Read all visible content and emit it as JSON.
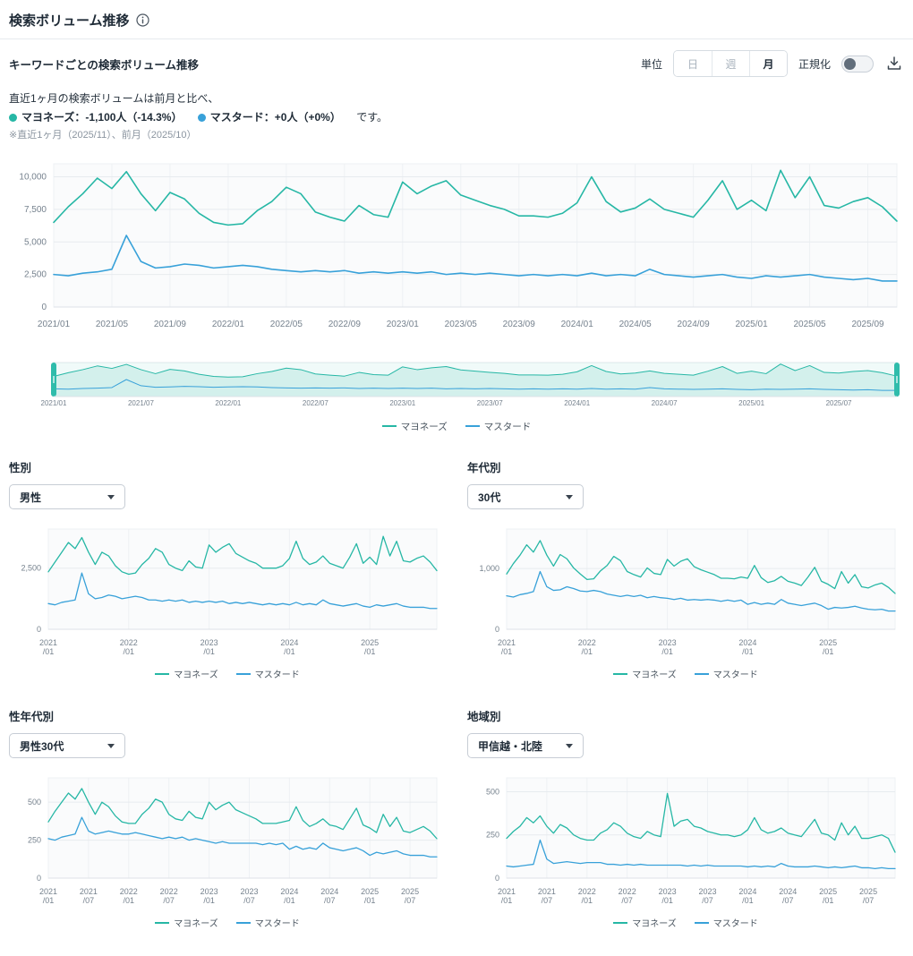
{
  "page": {
    "title": "検索ボリューム推移"
  },
  "icons": {
    "info": "info-circle",
    "download": "download-tray",
    "caret": "caret-down"
  },
  "colors": {
    "mayonnaise": "#26b7a5",
    "mustard": "#38a1d9",
    "grid": "#e7ebef",
    "axis_text": "#76828e",
    "brush_fill": "rgba(38,183,165,0.14)"
  },
  "toolbar": {
    "section_title": "キーワードごとの検索ボリューム推移",
    "unit_label": "単位",
    "unit_options": [
      {
        "label": "日",
        "selected": false
      },
      {
        "label": "週",
        "selected": false
      },
      {
        "label": "月",
        "selected": true
      }
    ],
    "normalize_label": "正規化",
    "normalize_on": false
  },
  "summary": {
    "line1": "直近1ヶ月の検索ボリュームは前月と比べ、",
    "items": [
      {
        "text": "マヨネーズ：-1,100人（-14.3%）",
        "color": "#26b7a5"
      },
      {
        "text": "マスタード：+0人（+0%）",
        "color": "#38a1d9"
      }
    ],
    "suffix": "です。",
    "note": "※直近1ヶ月（2025/11）、前月（2025/10）"
  },
  "legend": {
    "series": [
      {
        "label": "マヨネーズ",
        "color": "#26b7a5"
      },
      {
        "label": "マスタード",
        "color": "#38a1d9"
      }
    ]
  },
  "sections": [
    {
      "title": "性別",
      "dropdown": "男性"
    },
    {
      "title": "年代別",
      "dropdown": "30代"
    },
    {
      "title": "性年代別",
      "dropdown": "男性30代"
    },
    {
      "title": "地域別",
      "dropdown": "甲信越・北陸"
    }
  ],
  "chart_data": [
    {
      "id": "main",
      "type": "line",
      "title": "キーワードごとの検索ボリューム推移（月次）",
      "x_start": "2021/01",
      "x_end": "2025/11",
      "x_ticks": [
        "2021/01",
        "2021/05",
        "2021/09",
        "2022/01",
        "2022/05",
        "2022/09",
        "2023/01",
        "2023/05",
        "2023/09",
        "2024/01",
        "2024/05",
        "2024/09",
        "2025/01",
        "2025/05",
        "2025/09"
      ],
      "x_tick_step": 4,
      "y_ticks": [
        0,
        2500,
        5000,
        7500,
        10000
      ],
      "ylim": [
        0,
        11000
      ],
      "grid": true,
      "series": [
        {
          "name": "マヨネーズ",
          "color": "#26b7a5",
          "values": [
            6500,
            7700,
            8700,
            9900,
            9100,
            10400,
            8700,
            7400,
            8800,
            8300,
            7200,
            6500,
            6300,
            6400,
            7400,
            8100,
            9200,
            8700,
            7300,
            6900,
            6600,
            7800,
            7100,
            6900,
            9600,
            8700,
            9300,
            9700,
            8600,
            8200,
            7800,
            7500,
            7000,
            7000,
            6900,
            7200,
            8000,
            10000,
            8100,
            7300,
            7600,
            8300,
            7500,
            7200,
            6900,
            8200,
            9700,
            7500,
            8200,
            7400,
            10500,
            8400,
            10000,
            7800,
            7600,
            8100,
            8400,
            7700,
            6600
          ]
        },
        {
          "name": "マスタード",
          "color": "#38a1d9",
          "values": [
            2500,
            2400,
            2600,
            2700,
            2900,
            5500,
            3500,
            3000,
            3100,
            3300,
            3200,
            3000,
            3100,
            3200,
            3100,
            2900,
            2800,
            2700,
            2800,
            2700,
            2800,
            2600,
            2700,
            2600,
            2700,
            2600,
            2700,
            2500,
            2600,
            2500,
            2600,
            2500,
            2400,
            2500,
            2400,
            2500,
            2400,
            2600,
            2400,
            2500,
            2400,
            2900,
            2500,
            2400,
            2300,
            2400,
            2500,
            2300,
            2200,
            2400,
            2300,
            2400,
            2500,
            2300,
            2200,
            2100,
            2200,
            2000,
            2000
          ]
        }
      ]
    },
    {
      "id": "brush",
      "type": "area",
      "title": "期間選択ブラシ（全期間選択中）",
      "source": "main",
      "x_ticks": [
        "2021/01",
        "2021/07",
        "2022/01",
        "2022/07",
        "2023/01",
        "2023/07",
        "2024/01",
        "2024/07",
        "2025/01",
        "2025/07"
      ],
      "x_tick_step": 6
    },
    {
      "id": "gender",
      "type": "line",
      "title": "性別：男性",
      "x_ticks": [
        "2021/01",
        "2022/01",
        "2023/01",
        "2024/01",
        "2025/01"
      ],
      "x_tick_step": 12,
      "y_ticks": [
        0,
        2500
      ],
      "ylim": [
        0,
        4100
      ],
      "series": [
        {
          "name": "マヨネーズ",
          "color": "#26b7a5",
          "values": [
            2350,
            2750,
            3150,
            3550,
            3300,
            3750,
            3150,
            2650,
            3150,
            3000,
            2600,
            2350,
            2250,
            2300,
            2650,
            2900,
            3300,
            3150,
            2650,
            2500,
            2400,
            2800,
            2550,
            2500,
            3450,
            3150,
            3350,
            3500,
            3100,
            2950,
            2800,
            2700,
            2500,
            2500,
            2500,
            2600,
            2900,
            3600,
            2900,
            2650,
            2750,
            3000,
            2700,
            2600,
            2500,
            2950,
            3500,
            2700,
            2950,
            2650,
            3800,
            3000,
            3600,
            2800,
            2750,
            2900,
            3000,
            2750,
            2400
          ]
        },
        {
          "name": "マスタード",
          "color": "#38a1d9",
          "values": [
            1050,
            1000,
            1100,
            1150,
            1200,
            2300,
            1450,
            1250,
            1300,
            1400,
            1350,
            1250,
            1300,
            1350,
            1300,
            1200,
            1200,
            1150,
            1200,
            1150,
            1200,
            1100,
            1150,
            1100,
            1150,
            1100,
            1150,
            1050,
            1100,
            1050,
            1100,
            1050,
            1000,
            1050,
            1000,
            1050,
            1000,
            1100,
            1000,
            1050,
            1000,
            1200,
            1050,
            1000,
            950,
            1000,
            1050,
            950,
            900,
            1000,
            950,
            1000,
            1050,
            950,
            900,
            900,
            900,
            850,
            850
          ]
        }
      ]
    },
    {
      "id": "age",
      "type": "line",
      "title": "年代別：30代",
      "x_ticks": [
        "2021/01",
        "2022/01",
        "2023/01",
        "2024/01",
        "2025/01"
      ],
      "x_tick_step": 12,
      "y_ticks": [
        0,
        1000
      ],
      "ylim": [
        0,
        1650
      ],
      "series": [
        {
          "name": "マヨネーズ",
          "color": "#26b7a5",
          "values": [
            910,
            1080,
            1220,
            1390,
            1270,
            1460,
            1220,
            1040,
            1230,
            1160,
            1010,
            910,
            820,
            830,
            960,
            1050,
            1200,
            1130,
            950,
            900,
            860,
            1010,
            920,
            900,
            1150,
            1040,
            1120,
            1160,
            1030,
            980,
            940,
            900,
            840,
            840,
            830,
            860,
            840,
            1050,
            850,
            770,
            800,
            870,
            790,
            760,
            720,
            860,
            1020,
            790,
            740,
            670,
            950,
            760,
            900,
            700,
            680,
            730,
            760,
            690,
            590
          ]
        },
        {
          "name": "マスタード",
          "color": "#38a1d9",
          "values": [
            550,
            530,
            570,
            590,
            620,
            950,
            700,
            640,
            650,
            700,
            670,
            630,
            620,
            640,
            620,
            580,
            560,
            540,
            560,
            540,
            560,
            520,
            540,
            520,
            510,
            490,
            510,
            480,
            490,
            480,
            490,
            480,
            460,
            480,
            460,
            480,
            410,
            440,
            410,
            430,
            410,
            490,
            430,
            410,
            390,
            410,
            430,
            390,
            330,
            360,
            350,
            360,
            380,
            350,
            330,
            320,
            330,
            300,
            300
          ]
        }
      ]
    },
    {
      "id": "gender_age",
      "type": "line",
      "title": "性年代別：男性30代",
      "x_ticks": [
        "2021/01",
        "2021/07",
        "2022/01",
        "2022/07",
        "2023/01",
        "2023/07",
        "2024/01",
        "2024/07",
        "2025/01",
        "2025/07"
      ],
      "x_tick_step": 6,
      "y_ticks": [
        0,
        250,
        500
      ],
      "ylim": [
        0,
        660
      ],
      "series": [
        {
          "name": "マヨネーズ",
          "color": "#26b7a5",
          "values": [
            370,
            440,
            500,
            560,
            520,
            590,
            500,
            420,
            500,
            470,
            410,
            370,
            360,
            360,
            420,
            460,
            520,
            500,
            420,
            390,
            380,
            440,
            400,
            390,
            500,
            450,
            480,
            500,
            450,
            430,
            410,
            390,
            360,
            360,
            360,
            370,
            380,
            470,
            380,
            340,
            360,
            390,
            350,
            340,
            320,
            390,
            460,
            350,
            330,
            300,
            420,
            340,
            400,
            310,
            300,
            320,
            340,
            310,
            260
          ]
        },
        {
          "name": "マスタード",
          "color": "#38a1d9",
          "values": [
            260,
            250,
            270,
            280,
            290,
            400,
            310,
            290,
            300,
            310,
            300,
            290,
            290,
            300,
            290,
            280,
            270,
            260,
            270,
            260,
            270,
            250,
            260,
            250,
            240,
            230,
            240,
            230,
            230,
            230,
            230,
            230,
            220,
            230,
            220,
            230,
            190,
            210,
            190,
            200,
            190,
            230,
            200,
            190,
            180,
            190,
            200,
            180,
            150,
            170,
            160,
            170,
            180,
            160,
            150,
            150,
            150,
            140,
            140
          ]
        }
      ]
    },
    {
      "id": "region",
      "type": "line",
      "title": "地域別：甲信越・北陸",
      "x_ticks": [
        "2021/01",
        "2021/07",
        "2022/01",
        "2022/07",
        "2023/01",
        "2023/07",
        "2024/01",
        "2024/07",
        "2025/01",
        "2025/07"
      ],
      "x_tick_step": 6,
      "y_ticks": [
        0,
        250,
        500
      ],
      "ylim": [
        0,
        580
      ],
      "series": [
        {
          "name": "マヨネーズ",
          "color": "#26b7a5",
          "values": [
            230,
            270,
            300,
            350,
            320,
            360,
            300,
            260,
            310,
            290,
            250,
            230,
            220,
            220,
            260,
            280,
            320,
            300,
            260,
            240,
            230,
            270,
            250,
            240,
            490,
            300,
            330,
            340,
            300,
            290,
            270,
            260,
            250,
            250,
            240,
            250,
            280,
            350,
            280,
            260,
            270,
            290,
            260,
            250,
            240,
            290,
            340,
            260,
            250,
            220,
            320,
            250,
            300,
            230,
            230,
            240,
            250,
            230,
            150
          ]
        },
        {
          "name": "マスタード",
          "color": "#38a1d9",
          "values": [
            70,
            65,
            70,
            75,
            80,
            220,
            110,
            85,
            90,
            95,
            90,
            85,
            90,
            90,
            90,
            80,
            80,
            75,
            80,
            75,
            80,
            75,
            75,
            75,
            75,
            75,
            75,
            70,
            75,
            70,
            75,
            70,
            70,
            70,
            70,
            70,
            65,
            70,
            65,
            70,
            65,
            85,
            70,
            65,
            65,
            65,
            70,
            65,
            60,
            65,
            60,
            65,
            70,
            60,
            60,
            55,
            60,
            55,
            55
          ]
        }
      ]
    }
  ]
}
